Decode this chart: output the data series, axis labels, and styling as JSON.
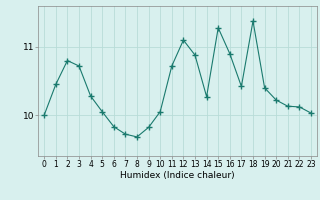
{
  "x": [
    0,
    1,
    2,
    3,
    4,
    5,
    6,
    7,
    8,
    9,
    10,
    11,
    12,
    13,
    14,
    15,
    16,
    17,
    18,
    19,
    20,
    21,
    22,
    23
  ],
  "y": [
    10.0,
    10.45,
    10.8,
    10.72,
    10.28,
    10.05,
    9.83,
    9.72,
    9.68,
    9.82,
    10.05,
    10.72,
    11.1,
    10.88,
    10.27,
    11.28,
    10.9,
    10.42,
    11.38,
    10.4,
    10.22,
    10.13,
    10.12,
    10.03
  ],
  "line_color": "#1a7a6e",
  "marker": "+",
  "bg_color": "#d8f0ee",
  "grid_color": "#b8dcd8",
  "xlabel": "Humidex (Indice chaleur)",
  "yticks": [
    10,
    11
  ],
  "xlim": [
    -0.5,
    23.5
  ],
  "ylim": [
    9.4,
    11.6
  ],
  "figsize": [
    3.2,
    2.0
  ],
  "dpi": 100
}
